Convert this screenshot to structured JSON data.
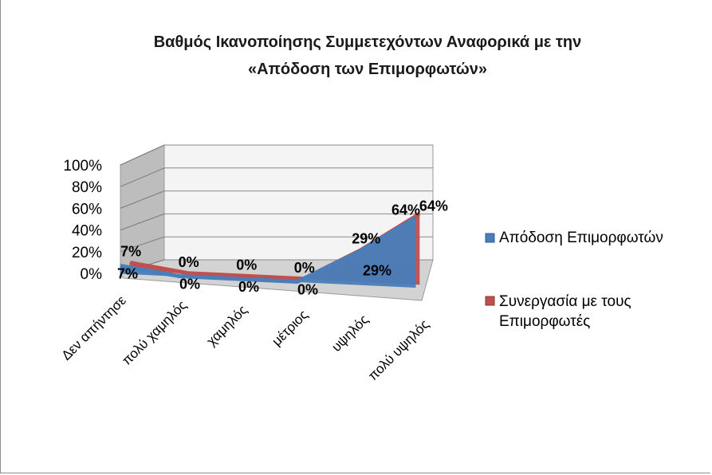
{
  "chart_data": {
    "type": "area",
    "title_lines": [
      "Βαθμός Ικανοποίησης Συμμετεχόντων  Αναφορικά με την",
      "«Απόδοση των Επιμορφωτών»"
    ],
    "categories": [
      "Δεν απήντησε",
      "πολύ χαμηλός",
      "χαμηλός",
      "μέτριος",
      "υψηλός",
      "πολύ υψηλός"
    ],
    "y_ticks": [
      "0%",
      "20%",
      "40%",
      "60%",
      "80%",
      "100%"
    ],
    "ylim": [
      0,
      100
    ],
    "series": [
      {
        "name": "Απόδοση Επιμορφωτών",
        "color": "#4a7ebb",
        "values": [
          7,
          0,
          0,
          0,
          29,
          64
        ],
        "labels": [
          "7%",
          "0%",
          "0%",
          "0%",
          "29%",
          "64%"
        ]
      },
      {
        "name": "Συνεργασία με τους Επιμορφωτές",
        "legend_lines": [
          "Συνεργασία με τους",
          "Επιμορφωτές"
        ],
        "color": "#c0504d",
        "values": [
          7,
          0,
          0,
          0,
          29,
          64
        ],
        "labels": [
          "7%",
          "0%",
          "0%",
          "0%",
          "29%",
          "64%"
        ]
      }
    ],
    "legend_position": "right",
    "grid": true,
    "three_d": true
  }
}
